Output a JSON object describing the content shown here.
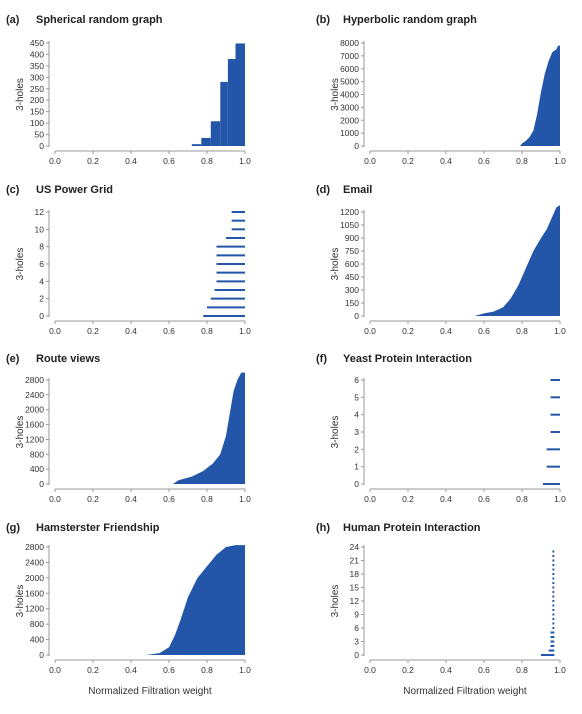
{
  "colors": {
    "bar": "#2356a8",
    "axis": "#9a9a9a",
    "text": "#333333"
  },
  "chart_data": [
    {
      "panel": "(a)",
      "title": "Spherical random graph",
      "type": "bar",
      "ylabel": "3-holes",
      "xlabel": "",
      "xlim": [
        0,
        1
      ],
      "ylim": [
        0,
        450
      ],
      "xticks": [
        "0.0",
        "0.2",
        "0.4",
        "0.6",
        "0.8",
        "1.0"
      ],
      "yticks": [
        0,
        50,
        100,
        150,
        200,
        250,
        300,
        350,
        400,
        450
      ],
      "bars": [
        [
          0.72,
          0.77,
          8
        ],
        [
          0.77,
          0.82,
          35
        ],
        [
          0.82,
          0.87,
          108
        ],
        [
          0.87,
          0.91,
          280
        ],
        [
          0.91,
          0.95,
          380
        ],
        [
          0.95,
          1.0,
          448
        ]
      ]
    },
    {
      "panel": "(b)",
      "title": "Hyperbolic random graph",
      "type": "area",
      "ylabel": "3-holes",
      "xlabel": "",
      "xlim": [
        0,
        1
      ],
      "ylim": [
        0,
        8000
      ],
      "xticks": [
        "0.0",
        "0.2",
        "0.4",
        "0.6",
        "0.8",
        "1.0"
      ],
      "yticks": [
        0,
        1000,
        2000,
        3000,
        4000,
        5000,
        6000,
        7000,
        8000
      ],
      "points": [
        [
          0.79,
          0
        ],
        [
          0.8,
          200
        ],
        [
          0.82,
          400
        ],
        [
          0.84,
          700
        ],
        [
          0.86,
          1200
        ],
        [
          0.88,
          2500
        ],
        [
          0.9,
          4200
        ],
        [
          0.92,
          5600
        ],
        [
          0.94,
          6600
        ],
        [
          0.96,
          7300
        ],
        [
          0.98,
          7500
        ],
        [
          0.99,
          7800
        ],
        [
          1.0,
          7800
        ]
      ]
    },
    {
      "panel": "(c)",
      "title": "US Power Grid",
      "type": "hbar",
      "ylabel": "3-holes",
      "xlabel": "",
      "xlim": [
        0,
        1
      ],
      "ylim": [
        0,
        12
      ],
      "xticks": [
        "0.0",
        "0.2",
        "0.4",
        "0.6",
        "0.8",
        "1.0"
      ],
      "yticks": [
        0,
        2,
        4,
        6,
        8,
        10,
        12
      ],
      "segments": [
        [
          0.78,
          1,
          0
        ],
        [
          0.8,
          1,
          1
        ],
        [
          0.82,
          1,
          2
        ],
        [
          0.84,
          1,
          3
        ],
        [
          0.85,
          1,
          4
        ],
        [
          0.85,
          1,
          5
        ],
        [
          0.85,
          1,
          6
        ],
        [
          0.85,
          1,
          7
        ],
        [
          0.85,
          1,
          8
        ],
        [
          0.9,
          1,
          9
        ],
        [
          0.93,
          1,
          10
        ],
        [
          0.93,
          1,
          11
        ],
        [
          0.93,
          1,
          12
        ]
      ]
    },
    {
      "panel": "(d)",
      "title": "Email",
      "type": "area",
      "ylabel": "3-holes",
      "xlabel": "",
      "xlim": [
        0,
        1
      ],
      "ylim": [
        0,
        1200
      ],
      "xticks": [
        "0.0",
        "0.2",
        "0.4",
        "0.6",
        "0.8",
        "1.0"
      ],
      "yticks": [
        0,
        150,
        300,
        450,
        600,
        750,
        900,
        1050,
        1200
      ],
      "points": [
        [
          0.55,
          0
        ],
        [
          0.6,
          30
        ],
        [
          0.65,
          50
        ],
        [
          0.7,
          100
        ],
        [
          0.74,
          200
        ],
        [
          0.78,
          350
        ],
        [
          0.82,
          550
        ],
        [
          0.86,
          750
        ],
        [
          0.9,
          900
        ],
        [
          0.93,
          1000
        ],
        [
          0.96,
          1150
        ],
        [
          0.98,
          1250
        ],
        [
          1.0,
          1280
        ]
      ]
    },
    {
      "panel": "(e)",
      "title": "Route views",
      "type": "area",
      "ylabel": "3-holes",
      "xlabel": "",
      "xlim": [
        0,
        1
      ],
      "ylim": [
        0,
        2800
      ],
      "xticks": [
        "0.0",
        "0.2",
        "0.4",
        "0.6",
        "0.8",
        "1.0"
      ],
      "yticks": [
        0,
        400,
        800,
        1200,
        1600,
        2000,
        2400,
        2800
      ],
      "points": [
        [
          0.62,
          0
        ],
        [
          0.65,
          100
        ],
        [
          0.72,
          200
        ],
        [
          0.78,
          350
        ],
        [
          0.83,
          550
        ],
        [
          0.87,
          800
        ],
        [
          0.9,
          1300
        ],
        [
          0.92,
          1900
        ],
        [
          0.94,
          2500
        ],
        [
          0.96,
          2800
        ],
        [
          0.98,
          3000
        ],
        [
          1.0,
          3000
        ]
      ]
    },
    {
      "panel": "(f)",
      "title": "Yeast Protein Interaction",
      "type": "hbar",
      "ylabel": "3-holes",
      "xlabel": "",
      "xlim": [
        0,
        1
      ],
      "ylim": [
        0,
        6
      ],
      "xticks": [
        "0.0",
        "0.2",
        "0.4",
        "0.6",
        "0.8",
        "1.0"
      ],
      "yticks": [
        0,
        1,
        2,
        3,
        4,
        5,
        6
      ],
      "segments": [
        [
          0.91,
          1,
          0
        ],
        [
          0.93,
          1,
          1
        ],
        [
          0.93,
          1,
          2
        ],
        [
          0.95,
          1,
          3
        ],
        [
          0.95,
          1,
          4
        ],
        [
          0.95,
          1,
          5
        ],
        [
          0.95,
          1,
          6
        ]
      ]
    },
    {
      "panel": "(g)",
      "title": "Hamsterster Friendship",
      "type": "area",
      "ylabel": "3-holes",
      "xlabel": "Normalized Filtration weight",
      "xlim": [
        0,
        1
      ],
      "ylim": [
        0,
        2800
      ],
      "xticks": [
        "0.0",
        "0.2",
        "0.4",
        "0.6",
        "0.8",
        "1.0"
      ],
      "yticks": [
        0,
        400,
        800,
        1200,
        1600,
        2000,
        2400,
        2800
      ],
      "points": [
        [
          0.48,
          0
        ],
        [
          0.55,
          50
        ],
        [
          0.6,
          200
        ],
        [
          0.63,
          500
        ],
        [
          0.66,
          900
        ],
        [
          0.7,
          1500
        ],
        [
          0.75,
          2000
        ],
        [
          0.8,
          2300
        ],
        [
          0.85,
          2600
        ],
        [
          0.9,
          2800
        ],
        [
          0.95,
          2850
        ],
        [
          1.0,
          2850
        ]
      ]
    },
    {
      "panel": "(h)",
      "title": "Human Protein Interaction",
      "type": "hbar",
      "ylabel": "3-holes",
      "xlabel": "Normalized Filtration weight",
      "xlim": [
        0,
        1
      ],
      "ylim": [
        0,
        24
      ],
      "xticks": [
        "0.0",
        "0.2",
        "0.4",
        "0.6",
        "0.8",
        "1.0"
      ],
      "yticks": [
        0,
        3,
        6,
        9,
        12,
        15,
        18,
        21,
        24
      ],
      "segments": [
        [
          0.9,
          0.97,
          0
        ],
        [
          0.94,
          0.97,
          1
        ],
        [
          0.95,
          0.97,
          2
        ],
        [
          0.95,
          0.97,
          3
        ],
        [
          0.95,
          0.97,
          4
        ],
        [
          0.95,
          0.97,
          5
        ],
        [
          0.96,
          0.97,
          6
        ],
        [
          0.96,
          0.97,
          7
        ],
        [
          0.96,
          0.97,
          8
        ],
        [
          0.96,
          0.97,
          9
        ],
        [
          0.96,
          0.97,
          10
        ],
        [
          0.96,
          0.97,
          11
        ],
        [
          0.96,
          0.97,
          12
        ],
        [
          0.96,
          0.97,
          13
        ],
        [
          0.96,
          0.97,
          14
        ],
        [
          0.96,
          0.97,
          15
        ],
        [
          0.96,
          0.97,
          16
        ],
        [
          0.96,
          0.97,
          17
        ],
        [
          0.96,
          0.97,
          18
        ],
        [
          0.96,
          0.97,
          19
        ],
        [
          0.96,
          0.97,
          20
        ],
        [
          0.96,
          0.97,
          21
        ],
        [
          0.96,
          0.97,
          22
        ],
        [
          0.96,
          0.97,
          23
        ]
      ]
    }
  ]
}
